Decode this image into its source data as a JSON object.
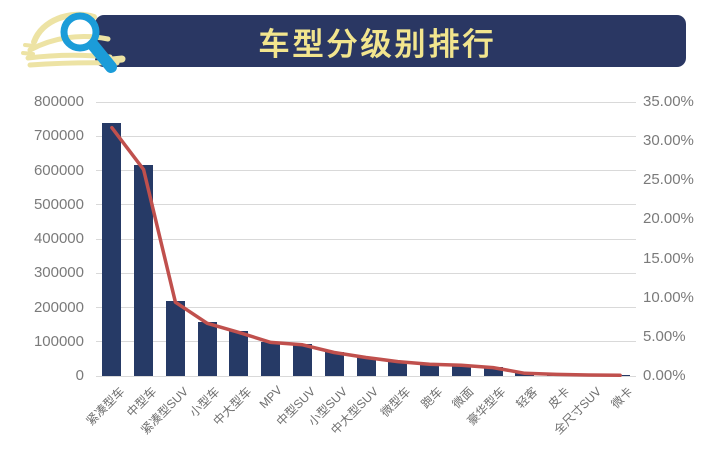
{
  "header": {
    "title": "车型分级别排行",
    "icons": [
      "car-icon",
      "magnifier-icon"
    ]
  },
  "colors": {
    "banner": "#2A3763",
    "title_text": "#F2E58E",
    "bar": "#263A66",
    "line": "#C0504D",
    "gridline": "#D9D9D9",
    "axis_text": "#7A7A7A",
    "magnifier_blue": "#1B9CD9",
    "car_cream": "#EDE3A4"
  },
  "chart_data": {
    "type": "bar+line combo",
    "title": "车型分级别排行",
    "grid": true,
    "legend": false,
    "categories": [
      "紧凑型车",
      "中型车",
      "紧凑型SUV",
      "小型车",
      "中大型车",
      "MPV",
      "中型SUV",
      "小型SUV",
      "中大型SUV",
      "微型车",
      "跑车",
      "微面",
      "豪华型车",
      "轻客",
      "皮卡",
      "全尺寸SUV",
      "微卡"
    ],
    "series": [
      {
        "name": "bar_series",
        "type": "bar",
        "axis": "left",
        "values": [
          740000,
          615000,
          220000,
          157000,
          130000,
          100000,
          93000,
          70000,
          55000,
          43000,
          35000,
          32000,
          25000,
          8000,
          5000,
          3000,
          2000
        ]
      },
      {
        "name": "line_series",
        "type": "line",
        "axis": "right",
        "values_percent": [
          31.72,
          26.36,
          9.43,
          6.73,
          5.57,
          4.29,
          3.99,
          3.0,
          2.36,
          1.84,
          1.5,
          1.37,
          1.07,
          0.34,
          0.21,
          0.13,
          0.09
        ]
      }
    ],
    "left_axis": {
      "min": 0,
      "max": 800000,
      "step": 100000,
      "tick_labels": [
        "800000",
        "700000",
        "600000",
        "500000",
        "400000",
        "300000",
        "200000",
        "100000",
        "0"
      ]
    },
    "right_axis": {
      "min_percent": 0,
      "max_percent": 35,
      "step_percent": 5,
      "tick_labels": [
        "35.00%",
        "30.00%",
        "25.00%",
        "20.00%",
        "15.00%",
        "10.00%",
        "5.00%",
        "0.00%"
      ]
    }
  }
}
